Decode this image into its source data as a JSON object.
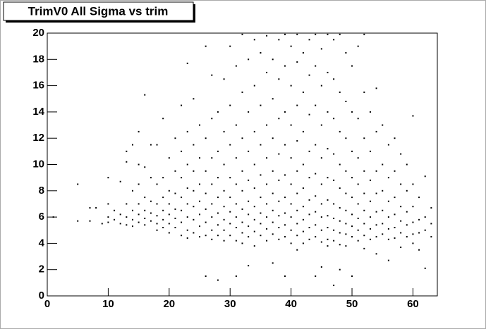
{
  "chart_data": {
    "type": "scatter",
    "title": "TrimV0 All Sigma vs trim",
    "xlim": [
      0,
      64
    ],
    "ylim": [
      0,
      20
    ],
    "xticks": [
      0,
      10,
      20,
      30,
      40,
      50,
      60
    ],
    "yticks": [
      0,
      2,
      4,
      6,
      8,
      10,
      12,
      14,
      16,
      18,
      20
    ],
    "color": "#000000",
    "points": [
      [
        1,
        6.0
      ],
      [
        5,
        8.5
      ],
      [
        5,
        5.7
      ],
      [
        7,
        6.7
      ],
      [
        7,
        5.7
      ],
      [
        8,
        6.7
      ],
      [
        9,
        5.5
      ],
      [
        10,
        9.0
      ],
      [
        10,
        7.0
      ],
      [
        10,
        6.0
      ],
      [
        10,
        5.6
      ],
      [
        11,
        6.5
      ],
      [
        11,
        5.8
      ],
      [
        12,
        8.7
      ],
      [
        12,
        6.2
      ],
      [
        12,
        5.5
      ],
      [
        13,
        11.0
      ],
      [
        13,
        10.2
      ],
      [
        13,
        7.0
      ],
      [
        13,
        6.0
      ],
      [
        13,
        5.4
      ],
      [
        14,
        11.5
      ],
      [
        14,
        8.0
      ],
      [
        14,
        6.5
      ],
      [
        14,
        5.8
      ],
      [
        14,
        5.3
      ],
      [
        15,
        12.5
      ],
      [
        15,
        10.0
      ],
      [
        15,
        8.5
      ],
      [
        15,
        7.0
      ],
      [
        15,
        6.2
      ],
      [
        15,
        5.6
      ],
      [
        16,
        15.3
      ],
      [
        16,
        9.8
      ],
      [
        16,
        7.5
      ],
      [
        16,
        6.5
      ],
      [
        16,
        5.9
      ],
      [
        16,
        5.4
      ],
      [
        17,
        11.5
      ],
      [
        17,
        9.0
      ],
      [
        17,
        7.2
      ],
      [
        17,
        6.3
      ],
      [
        17,
        5.7
      ],
      [
        18,
        11.5
      ],
      [
        18,
        8.5
      ],
      [
        18,
        7.0
      ],
      [
        18,
        6.1
      ],
      [
        18,
        5.5
      ],
      [
        18,
        5.0
      ],
      [
        19,
        13.5
      ],
      [
        19,
        9.0
      ],
      [
        19,
        7.5
      ],
      [
        19,
        6.5
      ],
      [
        19,
        5.8
      ],
      [
        19,
        5.2
      ],
      [
        20,
        10.5
      ],
      [
        20,
        8.0
      ],
      [
        20,
        7.0
      ],
      [
        20,
        6.2
      ],
      [
        20,
        5.5
      ],
      [
        20,
        4.8
      ],
      [
        21,
        12.0
      ],
      [
        21,
        9.5
      ],
      [
        21,
        7.8
      ],
      [
        21,
        6.6
      ],
      [
        21,
        5.9
      ],
      [
        21,
        5.2
      ],
      [
        22,
        14.5
      ],
      [
        22,
        11.0
      ],
      [
        22,
        9.0
      ],
      [
        22,
        7.5
      ],
      [
        22,
        6.5
      ],
      [
        22,
        5.6
      ],
      [
        22,
        4.6
      ],
      [
        23,
        17.7
      ],
      [
        23,
        12.5
      ],
      [
        23,
        10.0
      ],
      [
        23,
        8.2
      ],
      [
        23,
        7.0
      ],
      [
        23,
        6.0
      ],
      [
        23,
        5.0
      ],
      [
        23,
        4.4
      ],
      [
        24,
        15.0
      ],
      [
        24,
        11.5
      ],
      [
        24,
        9.5
      ],
      [
        24,
        8.0
      ],
      [
        24,
        6.8
      ],
      [
        24,
        5.8
      ],
      [
        24,
        4.8
      ],
      [
        25,
        13.0
      ],
      [
        25,
        10.5
      ],
      [
        25,
        8.5
      ],
      [
        25,
        7.2
      ],
      [
        25,
        6.2
      ],
      [
        25,
        5.3
      ],
      [
        25,
        4.5
      ],
      [
        26,
        19.0
      ],
      [
        26,
        12.0
      ],
      [
        26,
        9.5
      ],
      [
        26,
        7.8
      ],
      [
        26,
        6.6
      ],
      [
        26,
        5.6
      ],
      [
        26,
        4.6
      ],
      [
        26,
        1.5
      ],
      [
        27,
        16.8
      ],
      [
        27,
        13.5
      ],
      [
        27,
        10.5
      ],
      [
        27,
        8.5
      ],
      [
        27,
        7.0
      ],
      [
        27,
        6.0
      ],
      [
        27,
        5.0
      ],
      [
        27,
        4.3
      ],
      [
        28,
        14.0
      ],
      [
        28,
        11.0
      ],
      [
        28,
        9.0
      ],
      [
        28,
        7.5
      ],
      [
        28,
        6.3
      ],
      [
        28,
        5.4
      ],
      [
        28,
        4.6
      ],
      [
        28,
        1.2
      ],
      [
        29,
        16.5
      ],
      [
        29,
        12.5
      ],
      [
        29,
        10.0
      ],
      [
        29,
        8.0
      ],
      [
        29,
        6.8
      ],
      [
        29,
        5.8
      ],
      [
        29,
        5.0
      ],
      [
        29,
        4.2
      ],
      [
        30,
        19.0
      ],
      [
        30,
        14.5
      ],
      [
        30,
        11.5
      ],
      [
        30,
        9.0
      ],
      [
        30,
        7.5
      ],
      [
        30,
        6.4
      ],
      [
        30,
        5.5
      ],
      [
        30,
        4.6
      ],
      [
        31,
        17.5
      ],
      [
        31,
        13.0
      ],
      [
        31,
        10.5
      ],
      [
        31,
        8.5
      ],
      [
        31,
        7.0
      ],
      [
        31,
        6.0
      ],
      [
        31,
        5.2
      ],
      [
        31,
        4.2
      ],
      [
        31,
        1.5
      ],
      [
        32,
        19.9
      ],
      [
        32,
        15.5
      ],
      [
        32,
        12.0
      ],
      [
        32,
        9.5
      ],
      [
        32,
        8.0
      ],
      [
        32,
        6.6
      ],
      [
        32,
        5.6
      ],
      [
        32,
        4.8
      ],
      [
        32,
        4.0
      ],
      [
        33,
        18.0
      ],
      [
        33,
        14.0
      ],
      [
        33,
        11.0
      ],
      [
        33,
        8.8
      ],
      [
        33,
        7.2
      ],
      [
        33,
        6.2
      ],
      [
        33,
        5.3
      ],
      [
        33,
        4.5
      ],
      [
        33,
        2.3
      ],
      [
        34,
        19.5
      ],
      [
        34,
        16.0
      ],
      [
        34,
        12.5
      ],
      [
        34,
        10.0
      ],
      [
        34,
        8.2
      ],
      [
        34,
        6.8
      ],
      [
        34,
        5.8
      ],
      [
        34,
        4.9
      ],
      [
        34,
        3.8
      ],
      [
        35,
        18.5
      ],
      [
        35,
        14.5
      ],
      [
        35,
        11.5
      ],
      [
        35,
        9.2
      ],
      [
        35,
        7.5
      ],
      [
        35,
        6.3
      ],
      [
        35,
        5.5
      ],
      [
        35,
        4.6
      ],
      [
        36,
        19.8
      ],
      [
        36,
        17.0
      ],
      [
        36,
        13.0
      ],
      [
        36,
        10.5
      ],
      [
        36,
        8.5
      ],
      [
        36,
        7.0
      ],
      [
        36,
        6.0
      ],
      [
        36,
        5.1
      ],
      [
        36,
        4.2
      ],
      [
        37,
        18.0
      ],
      [
        37,
        15.0
      ],
      [
        37,
        12.0
      ],
      [
        37,
        9.5
      ],
      [
        37,
        7.8
      ],
      [
        37,
        6.5
      ],
      [
        37,
        5.6
      ],
      [
        37,
        4.7
      ],
      [
        37,
        2.5
      ],
      [
        38,
        19.5
      ],
      [
        38,
        16.5
      ],
      [
        38,
        13.5
      ],
      [
        38,
        10.8
      ],
      [
        38,
        8.8
      ],
      [
        38,
        7.2
      ],
      [
        38,
        6.1
      ],
      [
        38,
        5.2
      ],
      [
        38,
        4.3
      ],
      [
        39,
        19.9
      ],
      [
        39,
        17.5
      ],
      [
        39,
        14.0
      ],
      [
        39,
        11.5
      ],
      [
        39,
        9.2
      ],
      [
        39,
        7.5
      ],
      [
        39,
        6.3
      ],
      [
        39,
        5.4
      ],
      [
        39,
        4.5
      ],
      [
        39,
        1.5
      ],
      [
        40,
        19.0
      ],
      [
        40,
        16.0
      ],
      [
        40,
        13.0
      ],
      [
        40,
        10.5
      ],
      [
        40,
        8.5
      ],
      [
        40,
        7.0
      ],
      [
        40,
        6.0
      ],
      [
        40,
        5.0
      ],
      [
        40,
        4.0
      ],
      [
        41,
        19.9
      ],
      [
        41,
        17.8
      ],
      [
        41,
        14.5
      ],
      [
        41,
        11.8
      ],
      [
        41,
        9.5
      ],
      [
        41,
        7.8
      ],
      [
        41,
        6.5
      ],
      [
        41,
        5.5
      ],
      [
        41,
        4.6
      ],
      [
        41,
        3.5
      ],
      [
        42,
        18.5
      ],
      [
        42,
        15.5
      ],
      [
        42,
        12.5
      ],
      [
        42,
        10.0
      ],
      [
        42,
        8.2
      ],
      [
        42,
        6.8
      ],
      [
        42,
        5.8
      ],
      [
        42,
        4.9
      ],
      [
        42,
        4.0
      ],
      [
        43,
        19.5
      ],
      [
        43,
        16.8
      ],
      [
        43,
        13.8
      ],
      [
        43,
        11.0
      ],
      [
        43,
        9.0
      ],
      [
        43,
        7.3
      ],
      [
        43,
        6.2
      ],
      [
        43,
        5.2
      ],
      [
        43,
        4.3
      ],
      [
        44,
        19.9
      ],
      [
        44,
        17.5
      ],
      [
        44,
        14.5
      ],
      [
        44,
        11.5
      ],
      [
        44,
        9.3
      ],
      [
        44,
        7.6
      ],
      [
        44,
        6.4
      ],
      [
        44,
        5.4
      ],
      [
        44,
        4.5
      ],
      [
        44,
        1.5
      ],
      [
        45,
        18.8
      ],
      [
        45,
        16.0
      ],
      [
        45,
        13.0
      ],
      [
        45,
        10.5
      ],
      [
        45,
        8.5
      ],
      [
        45,
        7.0
      ],
      [
        45,
        6.0
      ],
      [
        45,
        5.0
      ],
      [
        45,
        4.1
      ],
      [
        45,
        2.2
      ],
      [
        46,
        19.9
      ],
      [
        46,
        17.0
      ],
      [
        46,
        14.0
      ],
      [
        46,
        11.2
      ],
      [
        46,
        9.0
      ],
      [
        46,
        7.3
      ],
      [
        46,
        6.1
      ],
      [
        46,
        5.2
      ],
      [
        46,
        4.3
      ],
      [
        46,
        3.8
      ],
      [
        47,
        19.5
      ],
      [
        47,
        16.5
      ],
      [
        47,
        13.5
      ],
      [
        47,
        10.8
      ],
      [
        47,
        8.8
      ],
      [
        47,
        7.0
      ],
      [
        47,
        5.9
      ],
      [
        47,
        5.0
      ],
      [
        47,
        4.2
      ],
      [
        47,
        0.8
      ],
      [
        48,
        19.9
      ],
      [
        48,
        15.5
      ],
      [
        48,
        12.5
      ],
      [
        48,
        10.0
      ],
      [
        48,
        8.2
      ],
      [
        48,
        6.7
      ],
      [
        48,
        5.7
      ],
      [
        48,
        4.8
      ],
      [
        48,
        3.9
      ],
      [
        48,
        2.0
      ],
      [
        49,
        18.5
      ],
      [
        49,
        14.8
      ],
      [
        49,
        12.0
      ],
      [
        49,
        9.5
      ],
      [
        49,
        7.8
      ],
      [
        49,
        6.5
      ],
      [
        49,
        5.5
      ],
      [
        49,
        4.7
      ],
      [
        49,
        3.8
      ],
      [
        50,
        17.5
      ],
      [
        50,
        14.0
      ],
      [
        50,
        11.0
      ],
      [
        50,
        9.0
      ],
      [
        50,
        7.5
      ],
      [
        50,
        6.2
      ],
      [
        50,
        5.3
      ],
      [
        50,
        4.5
      ],
      [
        50,
        1.5
      ],
      [
        51,
        19.0
      ],
      [
        51,
        13.5
      ],
      [
        51,
        10.5
      ],
      [
        51,
        8.5
      ],
      [
        51,
        7.0
      ],
      [
        51,
        5.9
      ],
      [
        51,
        5.0
      ],
      [
        51,
        4.2
      ],
      [
        52,
        19.9
      ],
      [
        52,
        15.5
      ],
      [
        52,
        12.0
      ],
      [
        52,
        9.5
      ],
      [
        52,
        7.8
      ],
      [
        52,
        6.5
      ],
      [
        52,
        5.5
      ],
      [
        52,
        4.6
      ],
      [
        52,
        3.6
      ],
      [
        53,
        14.0
      ],
      [
        53,
        11.0
      ],
      [
        53,
        8.8
      ],
      [
        53,
        7.2
      ],
      [
        53,
        6.0
      ],
      [
        53,
        5.1
      ],
      [
        53,
        4.3
      ],
      [
        54,
        15.8
      ],
      [
        54,
        12.5
      ],
      [
        54,
        9.5
      ],
      [
        54,
        7.8
      ],
      [
        54,
        6.4
      ],
      [
        54,
        5.4
      ],
      [
        54,
        4.5
      ],
      [
        54,
        3.2
      ],
      [
        55,
        13.0
      ],
      [
        55,
        10.0
      ],
      [
        55,
        8.0
      ],
      [
        55,
        6.5
      ],
      [
        55,
        5.5
      ],
      [
        55,
        4.7
      ],
      [
        56,
        11.5
      ],
      [
        56,
        9.0
      ],
      [
        56,
        7.2
      ],
      [
        56,
        6.0
      ],
      [
        56,
        5.1
      ],
      [
        56,
        4.3
      ],
      [
        56,
        2.7
      ],
      [
        57,
        12.0
      ],
      [
        57,
        9.5
      ],
      [
        57,
        7.5
      ],
      [
        57,
        6.2
      ],
      [
        57,
        5.2
      ],
      [
        57,
        4.4
      ],
      [
        58,
        10.8
      ],
      [
        58,
        8.5
      ],
      [
        58,
        6.8
      ],
      [
        58,
        5.7
      ],
      [
        58,
        4.8
      ],
      [
        58,
        3.7
      ],
      [
        59,
        10.0
      ],
      [
        59,
        8.0
      ],
      [
        59,
        6.4
      ],
      [
        59,
        5.4
      ],
      [
        59,
        4.5
      ],
      [
        60,
        13.7
      ],
      [
        60,
        8.5
      ],
      [
        60,
        6.8
      ],
      [
        60,
        5.6
      ],
      [
        60,
        4.7
      ],
      [
        60,
        4.0
      ],
      [
        61,
        7.5
      ],
      [
        61,
        5.8
      ],
      [
        61,
        4.8
      ],
      [
        61,
        3.5
      ],
      [
        62,
        9.1
      ],
      [
        62,
        6.0
      ],
      [
        62,
        5.0
      ],
      [
        62,
        2.1
      ],
      [
        63,
        6.7
      ],
      [
        63,
        5.5
      ],
      [
        63,
        4.5
      ]
    ]
  }
}
